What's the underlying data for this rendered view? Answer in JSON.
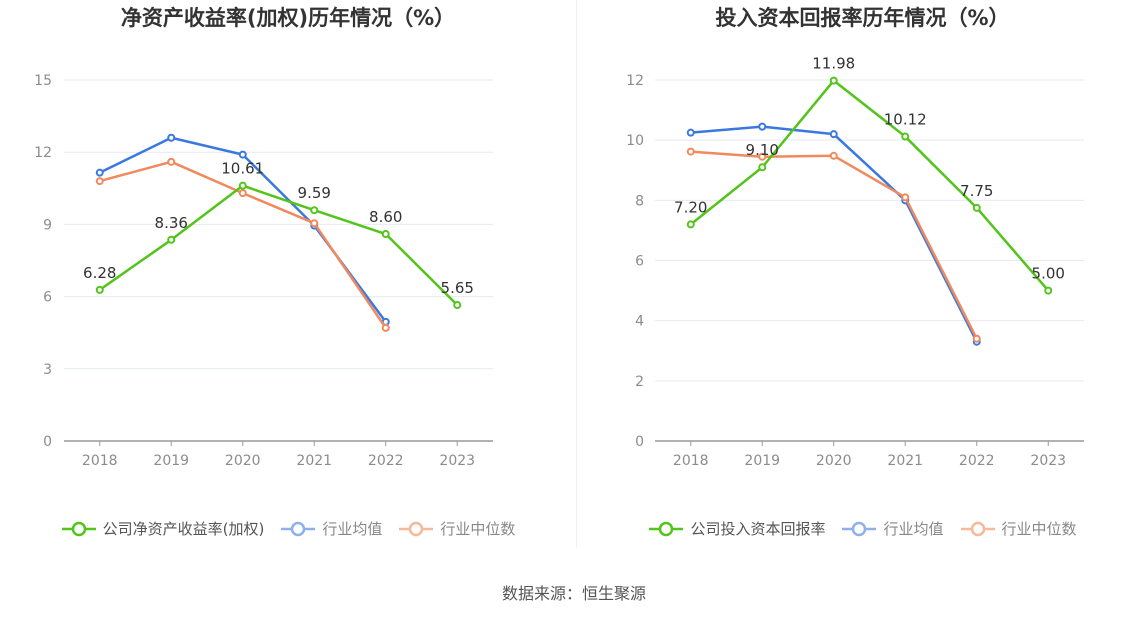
{
  "source_text": "数据来源：恒生聚源",
  "chart_data": [
    {
      "type": "line",
      "title": "净资产收益率(加权)历年情况（%）",
      "categories": [
        "2018",
        "2019",
        "2020",
        "2021",
        "2022",
        "2023"
      ],
      "ylim": [
        0,
        15
      ],
      "yticks": [
        "0",
        "3",
        "6",
        "9",
        "12",
        "15"
      ],
      "grid": true,
      "legend_position": "bottom",
      "series": [
        {
          "name": "公司净资产收益率(加权)",
          "color": "#52c41a",
          "values": [
            6.28,
            8.36,
            10.61,
            9.59,
            8.6,
            5.65
          ],
          "labels": [
            "6.28",
            "8.36",
            "10.61",
            "9.59",
            "8.60",
            "5.65"
          ]
        },
        {
          "name": "行业均值",
          "color": "#3a78e0",
          "values": [
            11.15,
            12.6,
            11.9,
            8.95,
            4.95,
            null
          ],
          "labels": []
        },
        {
          "name": "行业中位数",
          "color": "#f08a5d",
          "values": [
            10.8,
            11.6,
            10.3,
            9.05,
            4.7,
            null
          ],
          "labels": []
        }
      ]
    },
    {
      "type": "line",
      "title": "投入资本回报率历年情况（%）",
      "categories": [
        "2018",
        "2019",
        "2020",
        "2021",
        "2022",
        "2023"
      ],
      "ylim": [
        0,
        12
      ],
      "yticks": [
        "0",
        "2",
        "4",
        "6",
        "8",
        "10",
        "12"
      ],
      "grid": true,
      "legend_position": "bottom",
      "series": [
        {
          "name": "公司投入资本回报率",
          "color": "#52c41a",
          "values": [
            7.2,
            9.1,
            11.98,
            10.12,
            7.75,
            5.0
          ],
          "labels": [
            "7.20",
            "9.10",
            "11.98",
            "10.12",
            "7.75",
            "5.00"
          ]
        },
        {
          "name": "行业均值",
          "color": "#3a78e0",
          "values": [
            10.25,
            10.45,
            10.2,
            8.0,
            3.3,
            null
          ],
          "labels": []
        },
        {
          "name": "行业中位数",
          "color": "#f08a5d",
          "values": [
            9.62,
            9.45,
            9.48,
            8.1,
            3.4,
            null
          ],
          "labels": []
        }
      ]
    }
  ]
}
